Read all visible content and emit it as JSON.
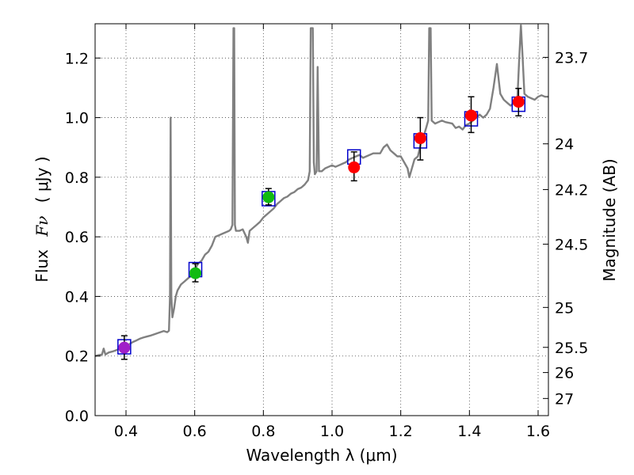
{
  "chart_data": {
    "type": "scatter",
    "title": "",
    "xlabel": "Wavelength  λ (μm)",
    "ylabel_text": "Flux",
    "ylabel_symbol": "Fν",
    "ylabel_unit": "( μJy )",
    "y2label": "Magnitude (AB)",
    "xlim": [
      0.31,
      1.63
    ],
    "ylim": [
      0.0,
      1.315
    ],
    "grid": true,
    "x_ticks": [
      0.4,
      0.6,
      0.8,
      1.0,
      1.2,
      1.4,
      1.6
    ],
    "x_tick_labels": [
      "0.4",
      "0.6",
      "0.8",
      "1.0",
      "1.2",
      "1.4",
      "1.6"
    ],
    "y_ticks": [
      0.0,
      0.2,
      0.4,
      0.6,
      0.8,
      1.0,
      1.2
    ],
    "y_tick_labels": [
      "0.0",
      "0.2",
      "0.4",
      "0.6",
      "0.8",
      "1.0",
      "1.2"
    ],
    "y2_ticks": [
      {
        "label": "23.7",
        "mag": 23.7
      },
      {
        "label": "24",
        "mag": 24.0
      },
      {
        "label": "24.2",
        "mag": 24.2
      },
      {
        "label": "24.5",
        "mag": 24.5
      },
      {
        "label": "25",
        "mag": 25.0
      },
      {
        "label": "25.5",
        "mag": 25.5
      },
      {
        "label": "26",
        "mag": 26.0
      },
      {
        "label": "27",
        "mag": 27.0
      }
    ],
    "colors": {
      "spectrum": "#808080",
      "model_box": "#0000cc",
      "errorbar": "#000000",
      "purple": "#a020c8",
      "green": "#11bb11",
      "red": "#ff0000"
    },
    "spectrum": [
      [
        0.31,
        0.2
      ],
      [
        0.32,
        0.203
      ],
      [
        0.33,
        0.205
      ],
      [
        0.335,
        0.225
      ],
      [
        0.34,
        0.205
      ],
      [
        0.35,
        0.212
      ],
      [
        0.36,
        0.215
      ],
      [
        0.37,
        0.219
      ],
      [
        0.38,
        0.224
      ],
      [
        0.39,
        0.228
      ],
      [
        0.4,
        0.235
      ],
      [
        0.41,
        0.24
      ],
      [
        0.42,
        0.247
      ],
      [
        0.43,
        0.252
      ],
      [
        0.44,
        0.258
      ],
      [
        0.45,
        0.262
      ],
      [
        0.46,
        0.265
      ],
      [
        0.47,
        0.268
      ],
      [
        0.48,
        0.272
      ],
      [
        0.49,
        0.276
      ],
      [
        0.5,
        0.28
      ],
      [
        0.51,
        0.284
      ],
      [
        0.52,
        0.28
      ],
      [
        0.525,
        0.285
      ],
      [
        0.528,
        0.4
      ],
      [
        0.53,
        1.0
      ],
      [
        0.532,
        0.4
      ],
      [
        0.535,
        0.33
      ],
      [
        0.54,
        0.36
      ],
      [
        0.545,
        0.4
      ],
      [
        0.55,
        0.42
      ],
      [
        0.56,
        0.44
      ],
      [
        0.57,
        0.45
      ],
      [
        0.58,
        0.46
      ],
      [
        0.59,
        0.47
      ],
      [
        0.6,
        0.49
      ],
      [
        0.61,
        0.51
      ],
      [
        0.62,
        0.52
      ],
      [
        0.63,
        0.54
      ],
      [
        0.64,
        0.55
      ],
      [
        0.65,
        0.57
      ],
      [
        0.66,
        0.6
      ],
      [
        0.67,
        0.605
      ],
      [
        0.68,
        0.61
      ],
      [
        0.69,
        0.615
      ],
      [
        0.7,
        0.62
      ],
      [
        0.705,
        0.625
      ],
      [
        0.71,
        0.64
      ],
      [
        0.713,
        1.3
      ],
      [
        0.715,
        1.3
      ],
      [
        0.717,
        0.64
      ],
      [
        0.72,
        0.62
      ],
      [
        0.73,
        0.62
      ],
      [
        0.74,
        0.625
      ],
      [
        0.75,
        0.6
      ],
      [
        0.755,
        0.58
      ],
      [
        0.76,
        0.62
      ],
      [
        0.77,
        0.63
      ],
      [
        0.78,
        0.64
      ],
      [
        0.79,
        0.65
      ],
      [
        0.8,
        0.665
      ],
      [
        0.81,
        0.675
      ],
      [
        0.82,
        0.685
      ],
      [
        0.83,
        0.695
      ],
      [
        0.84,
        0.71
      ],
      [
        0.85,
        0.72
      ],
      [
        0.86,
        0.73
      ],
      [
        0.87,
        0.735
      ],
      [
        0.88,
        0.745
      ],
      [
        0.89,
        0.75
      ],
      [
        0.9,
        0.76
      ],
      [
        0.91,
        0.765
      ],
      [
        0.92,
        0.775
      ],
      [
        0.93,
        0.79
      ],
      [
        0.935,
        0.82
      ],
      [
        0.938,
        1.3
      ],
      [
        0.944,
        1.3
      ],
      [
        0.947,
        0.85
      ],
      [
        0.95,
        0.81
      ],
      [
        0.955,
        0.82
      ],
      [
        0.958,
        1.17
      ],
      [
        0.962,
        0.82
      ],
      [
        0.97,
        0.82
      ],
      [
        0.98,
        0.83
      ],
      [
        0.99,
        0.835
      ],
      [
        1.0,
        0.84
      ],
      [
        1.01,
        0.835
      ],
      [
        1.02,
        0.84
      ],
      [
        1.03,
        0.845
      ],
      [
        1.04,
        0.85
      ],
      [
        1.05,
        0.86
      ],
      [
        1.06,
        0.865
      ],
      [
        1.07,
        0.87
      ],
      [
        1.08,
        0.875
      ],
      [
        1.09,
        0.865
      ],
      [
        1.1,
        0.87
      ],
      [
        1.12,
        0.88
      ],
      [
        1.14,
        0.88
      ],
      [
        1.15,
        0.9
      ],
      [
        1.16,
        0.91
      ],
      [
        1.17,
        0.89
      ],
      [
        1.18,
        0.88
      ],
      [
        1.19,
        0.87
      ],
      [
        1.2,
        0.87
      ],
      [
        1.21,
        0.85
      ],
      [
        1.22,
        0.83
      ],
      [
        1.225,
        0.8
      ],
      [
        1.23,
        0.82
      ],
      [
        1.24,
        0.86
      ],
      [
        1.25,
        0.87
      ],
      [
        1.26,
        0.92
      ],
      [
        1.27,
        0.95
      ],
      [
        1.275,
        0.97
      ],
      [
        1.28,
        0.99
      ],
      [
        1.283,
        1.3
      ],
      [
        1.287,
        1.3
      ],
      [
        1.29,
        0.99
      ],
      [
        1.3,
        0.98
      ],
      [
        1.31,
        0.985
      ],
      [
        1.32,
        0.99
      ],
      [
        1.33,
        0.985
      ],
      [
        1.35,
        0.98
      ],
      [
        1.36,
        0.965
      ],
      [
        1.37,
        0.97
      ],
      [
        1.38,
        0.96
      ],
      [
        1.39,
        0.975
      ],
      [
        1.4,
        0.98
      ],
      [
        1.41,
        0.99
      ],
      [
        1.42,
        1.0
      ],
      [
        1.43,
        1.01
      ],
      [
        1.44,
        1.0
      ],
      [
        1.45,
        1.01
      ],
      [
        1.46,
        1.03
      ],
      [
        1.47,
        1.1
      ],
      [
        1.48,
        1.18
      ],
      [
        1.49,
        1.08
      ],
      [
        1.5,
        1.06
      ],
      [
        1.51,
        1.05
      ],
      [
        1.52,
        1.04
      ],
      [
        1.53,
        1.05
      ],
      [
        1.54,
        1.07
      ],
      [
        1.545,
        1.2
      ],
      [
        1.55,
        1.31
      ],
      [
        1.555,
        1.2
      ],
      [
        1.56,
        1.08
      ],
      [
        1.57,
        1.07
      ],
      [
        1.58,
        1.065
      ],
      [
        1.59,
        1.06
      ],
      [
        1.6,
        1.07
      ],
      [
        1.61,
        1.075
      ],
      [
        1.62,
        1.07
      ],
      [
        1.63,
        1.07
      ]
    ],
    "photometry": [
      {
        "x": 0.395,
        "model": 0.231,
        "obs": 0.228,
        "err_lo": 0.189,
        "err_hi": 0.268,
        "color": "purple"
      },
      {
        "x": 0.602,
        "model": 0.49,
        "obs": 0.478,
        "err_lo": 0.449,
        "err_hi": 0.51,
        "color": "green"
      },
      {
        "x": 0.815,
        "model": 0.728,
        "obs": 0.733,
        "err_lo": 0.707,
        "err_hi": 0.762,
        "color": "green"
      },
      {
        "x": 1.064,
        "model": 0.868,
        "obs": 0.833,
        "err_lo": 0.788,
        "err_hi": 0.885,
        "color": "red"
      },
      {
        "x": 1.257,
        "model": 0.922,
        "obs": 0.931,
        "err_lo": 0.858,
        "err_hi": 1.0,
        "color": "red"
      },
      {
        "x": 1.405,
        "model": 0.996,
        "obs": 1.007,
        "err_lo": 0.95,
        "err_hi": 1.07,
        "color": "red"
      },
      {
        "x": 1.543,
        "model": 1.045,
        "obs": 1.053,
        "err_lo": 1.006,
        "err_hi": 1.098,
        "color": "red"
      }
    ]
  }
}
